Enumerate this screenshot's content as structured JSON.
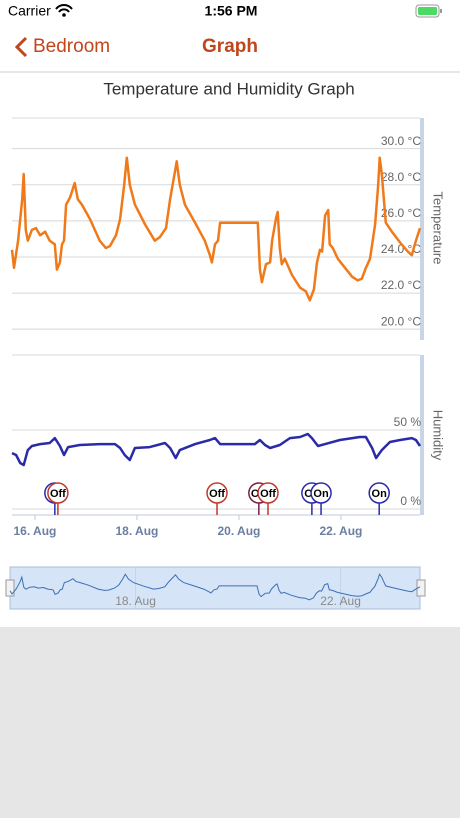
{
  "status_bar": {
    "carrier": "Carrier",
    "time": "1:56 PM"
  },
  "nav": {
    "back": "Bedroom",
    "title": "Graph"
  },
  "chart_data": [
    {
      "type": "line",
      "title": "Temperature and Humidity Graph",
      "y_label": "Temperature",
      "x": [
        15.55,
        15.59,
        15.67,
        15.75,
        15.78,
        15.82,
        15.86,
        15.94,
        16.02,
        16.1,
        16.2,
        16.29,
        16.39,
        16.43,
        16.49,
        16.53,
        16.57,
        16.61,
        16.69,
        16.78,
        16.84,
        16.92,
        17.08,
        17.27,
        17.39,
        17.47,
        17.59,
        17.67,
        17.75,
        17.8,
        17.86,
        17.96,
        18.16,
        18.35,
        18.45,
        18.57,
        18.65,
        18.75,
        18.78,
        18.84,
        18.94,
        19.14,
        19.33,
        19.43,
        19.47,
        19.53,
        19.59,
        19.63,
        20.02,
        20.37,
        20.41,
        20.45,
        20.53,
        20.61,
        20.65,
        20.73,
        20.76,
        20.8,
        20.84,
        20.9,
        21.04,
        21.2,
        21.31,
        21.39,
        21.47,
        21.53,
        21.59,
        21.63,
        21.69,
        21.75,
        21.78,
        21.84,
        21.94,
        22.08,
        22.22,
        22.33,
        22.41,
        22.49,
        22.57,
        22.67,
        22.73,
        22.76,
        22.8,
        22.88,
        23.0,
        23.16,
        23.31,
        23.39,
        23.47,
        23.55
      ],
      "series": [
        {
          "color": "#f07a1a",
          "values": [
            24.4,
            23.4,
            24.9,
            27.2,
            28.6,
            25.5,
            24.9,
            25.5,
            25.6,
            25.2,
            25.4,
            24.9,
            24.7,
            23.3,
            23.7,
            24.7,
            24.9,
            26.9,
            27.3,
            28.1,
            27.2,
            26.9,
            26.1,
            24.9,
            24.5,
            24.6,
            25.2,
            26.1,
            28.0,
            29.5,
            28.0,
            26.9,
            25.8,
            24.9,
            25.1,
            25.6,
            27.2,
            28.8,
            29.3,
            28.0,
            26.9,
            25.9,
            24.9,
            24.1,
            23.7,
            24.7,
            24.9,
            25.9,
            25.9,
            25.9,
            23.3,
            22.6,
            23.6,
            23.7,
            24.9,
            26.2,
            26.5,
            24.5,
            23.6,
            23.9,
            23.0,
            22.3,
            22.1,
            21.6,
            22.2,
            23.7,
            24.4,
            24.3,
            26.3,
            26.6,
            24.7,
            24.5,
            23.9,
            23.4,
            22.9,
            22.7,
            22.8,
            23.4,
            23.9,
            25.8,
            28.0,
            29.5,
            28.6,
            25.9,
            25.4,
            24.8,
            24.3,
            24.1,
            24.9,
            25.6
          ]
        }
      ],
      "xlim": [
        15.55,
        23.55
      ],
      "ylim": [
        19.4,
        31.7
      ],
      "yticks": [
        {
          "value": 20,
          "label": "20.0 °C"
        },
        {
          "value": 22,
          "label": "22.0 °C"
        },
        {
          "value": 24,
          "label": "24.0 °C"
        },
        {
          "value": 26,
          "label": "26.0 °C"
        },
        {
          "value": 28,
          "label": "28.0 °C"
        },
        {
          "value": 30,
          "label": "30.0 °C"
        }
      ],
      "grid": true
    },
    {
      "type": "line",
      "y_label": "Humidity",
      "x": [
        15.55,
        15.63,
        15.71,
        15.78,
        15.86,
        15.94,
        16.1,
        16.29,
        16.39,
        16.49,
        16.57,
        16.65,
        16.88,
        17.27,
        17.57,
        17.67,
        17.76,
        17.86,
        17.96,
        18.25,
        18.55,
        18.65,
        18.76,
        18.84,
        19.14,
        19.43,
        19.53,
        19.63,
        20.31,
        20.41,
        20.51,
        20.61,
        20.8,
        21.0,
        21.2,
        21.35,
        21.43,
        21.55,
        21.69,
        21.98,
        22.37,
        22.49,
        22.61,
        22.69,
        22.8,
        22.96,
        23.16,
        23.39,
        23.47,
        23.55
      ],
      "series": [
        {
          "color": "#2b2ba8",
          "values": [
            35.4,
            34.2,
            29.1,
            27.8,
            37.3,
            39.9,
            41.1,
            41.8,
            44.9,
            39.9,
            34.2,
            39.2,
            40.5,
            41.1,
            41.1,
            38.6,
            34.2,
            31.0,
            38.6,
            39.2,
            41.8,
            38.6,
            32.3,
            37.3,
            41.1,
            43.7,
            44.9,
            41.1,
            41.1,
            43.7,
            40.5,
            38.6,
            40.5,
            44.9,
            45.6,
            47.5,
            44.9,
            39.9,
            41.1,
            43.7,
            45.6,
            45.6,
            38.6,
            32.3,
            37.3,
            42.4,
            43.7,
            44.9,
            43.7,
            39.9
          ]
        }
      ],
      "xlim": [
        15.55,
        23.55
      ],
      "ylim": [
        -3.8,
        97.5
      ],
      "yticks": [
        {
          "value": 0,
          "label": "0 %"
        },
        {
          "value": 50,
          "label": "50 %"
        }
      ],
      "xticks": [
        {
          "value": 16,
          "label": "16. Aug"
        },
        {
          "value": 18,
          "label": "18. Aug"
        },
        {
          "value": 20,
          "label": "20. Aug"
        },
        {
          "value": 22,
          "label": "22. Aug"
        }
      ],
      "grid": true,
      "flags": [
        {
          "x": 16.39,
          "label": "On",
          "color": "#2b2ba8"
        },
        {
          "x": 16.45,
          "label": "Off",
          "color": "#c0392b"
        },
        {
          "x": 19.57,
          "label": "Off",
          "color": "#c0392b"
        },
        {
          "x": 20.39,
          "label": "Off",
          "color": "#7a1f4a"
        },
        {
          "x": 20.57,
          "label": "Off",
          "color": "#c0392b"
        },
        {
          "x": 21.43,
          "label": "On",
          "color": "#2b2ba8"
        },
        {
          "x": 21.61,
          "label": "On",
          "color": "#2b2ba8"
        },
        {
          "x": 22.75,
          "label": "On",
          "color": "#2b2ba8"
        }
      ]
    }
  ],
  "navigator": {
    "xlim": [
      15.55,
      23.55
    ],
    "xticks": [
      {
        "value": 18,
        "label": "18. Aug"
      },
      {
        "value": 22,
        "label": "22. Aug"
      }
    ]
  }
}
